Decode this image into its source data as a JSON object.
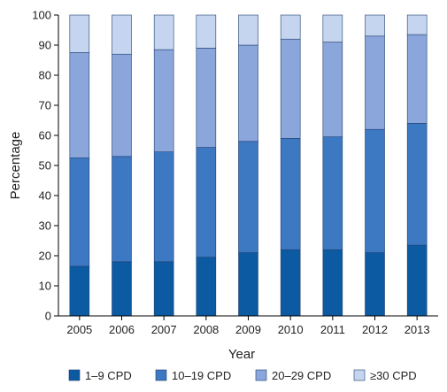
{
  "chart_data": {
    "type": "bar",
    "stacked": true,
    "categories": [
      "2005",
      "2006",
      "2007",
      "2008",
      "2009",
      "2010",
      "2011",
      "2012",
      "2013"
    ],
    "series": [
      {
        "name": "1–9 CPD",
        "color": "#0b5aa2",
        "values": [
          16.5,
          18.0,
          18.0,
          19.5,
          21.0,
          22.0,
          22.0,
          21.0,
          23.5
        ]
      },
      {
        "name": "10–19 CPD",
        "color": "#3d78c2",
        "values": [
          36.0,
          35.0,
          36.5,
          36.5,
          37.0,
          37.0,
          37.5,
          41.0,
          40.5
        ]
      },
      {
        "name": "20–29 CPD",
        "color": "#8aa6db",
        "values": [
          35.0,
          34.0,
          34.0,
          33.0,
          32.0,
          33.0,
          31.5,
          31.0,
          29.5
        ]
      },
      {
        "name": "≥30 CPD",
        "color": "#c6d5ef",
        "values": [
          12.5,
          13.0,
          11.5,
          11.0,
          10.0,
          8.0,
          9.0,
          7.0,
          6.5
        ]
      }
    ],
    "xlabel": "Year",
    "ylabel": "Percentage",
    "ylim": [
      0,
      100
    ],
    "yticks": [
      0,
      10,
      20,
      30,
      40,
      50,
      60,
      70,
      80,
      90,
      100
    ],
    "grid": false,
    "legend": "bottom"
  }
}
